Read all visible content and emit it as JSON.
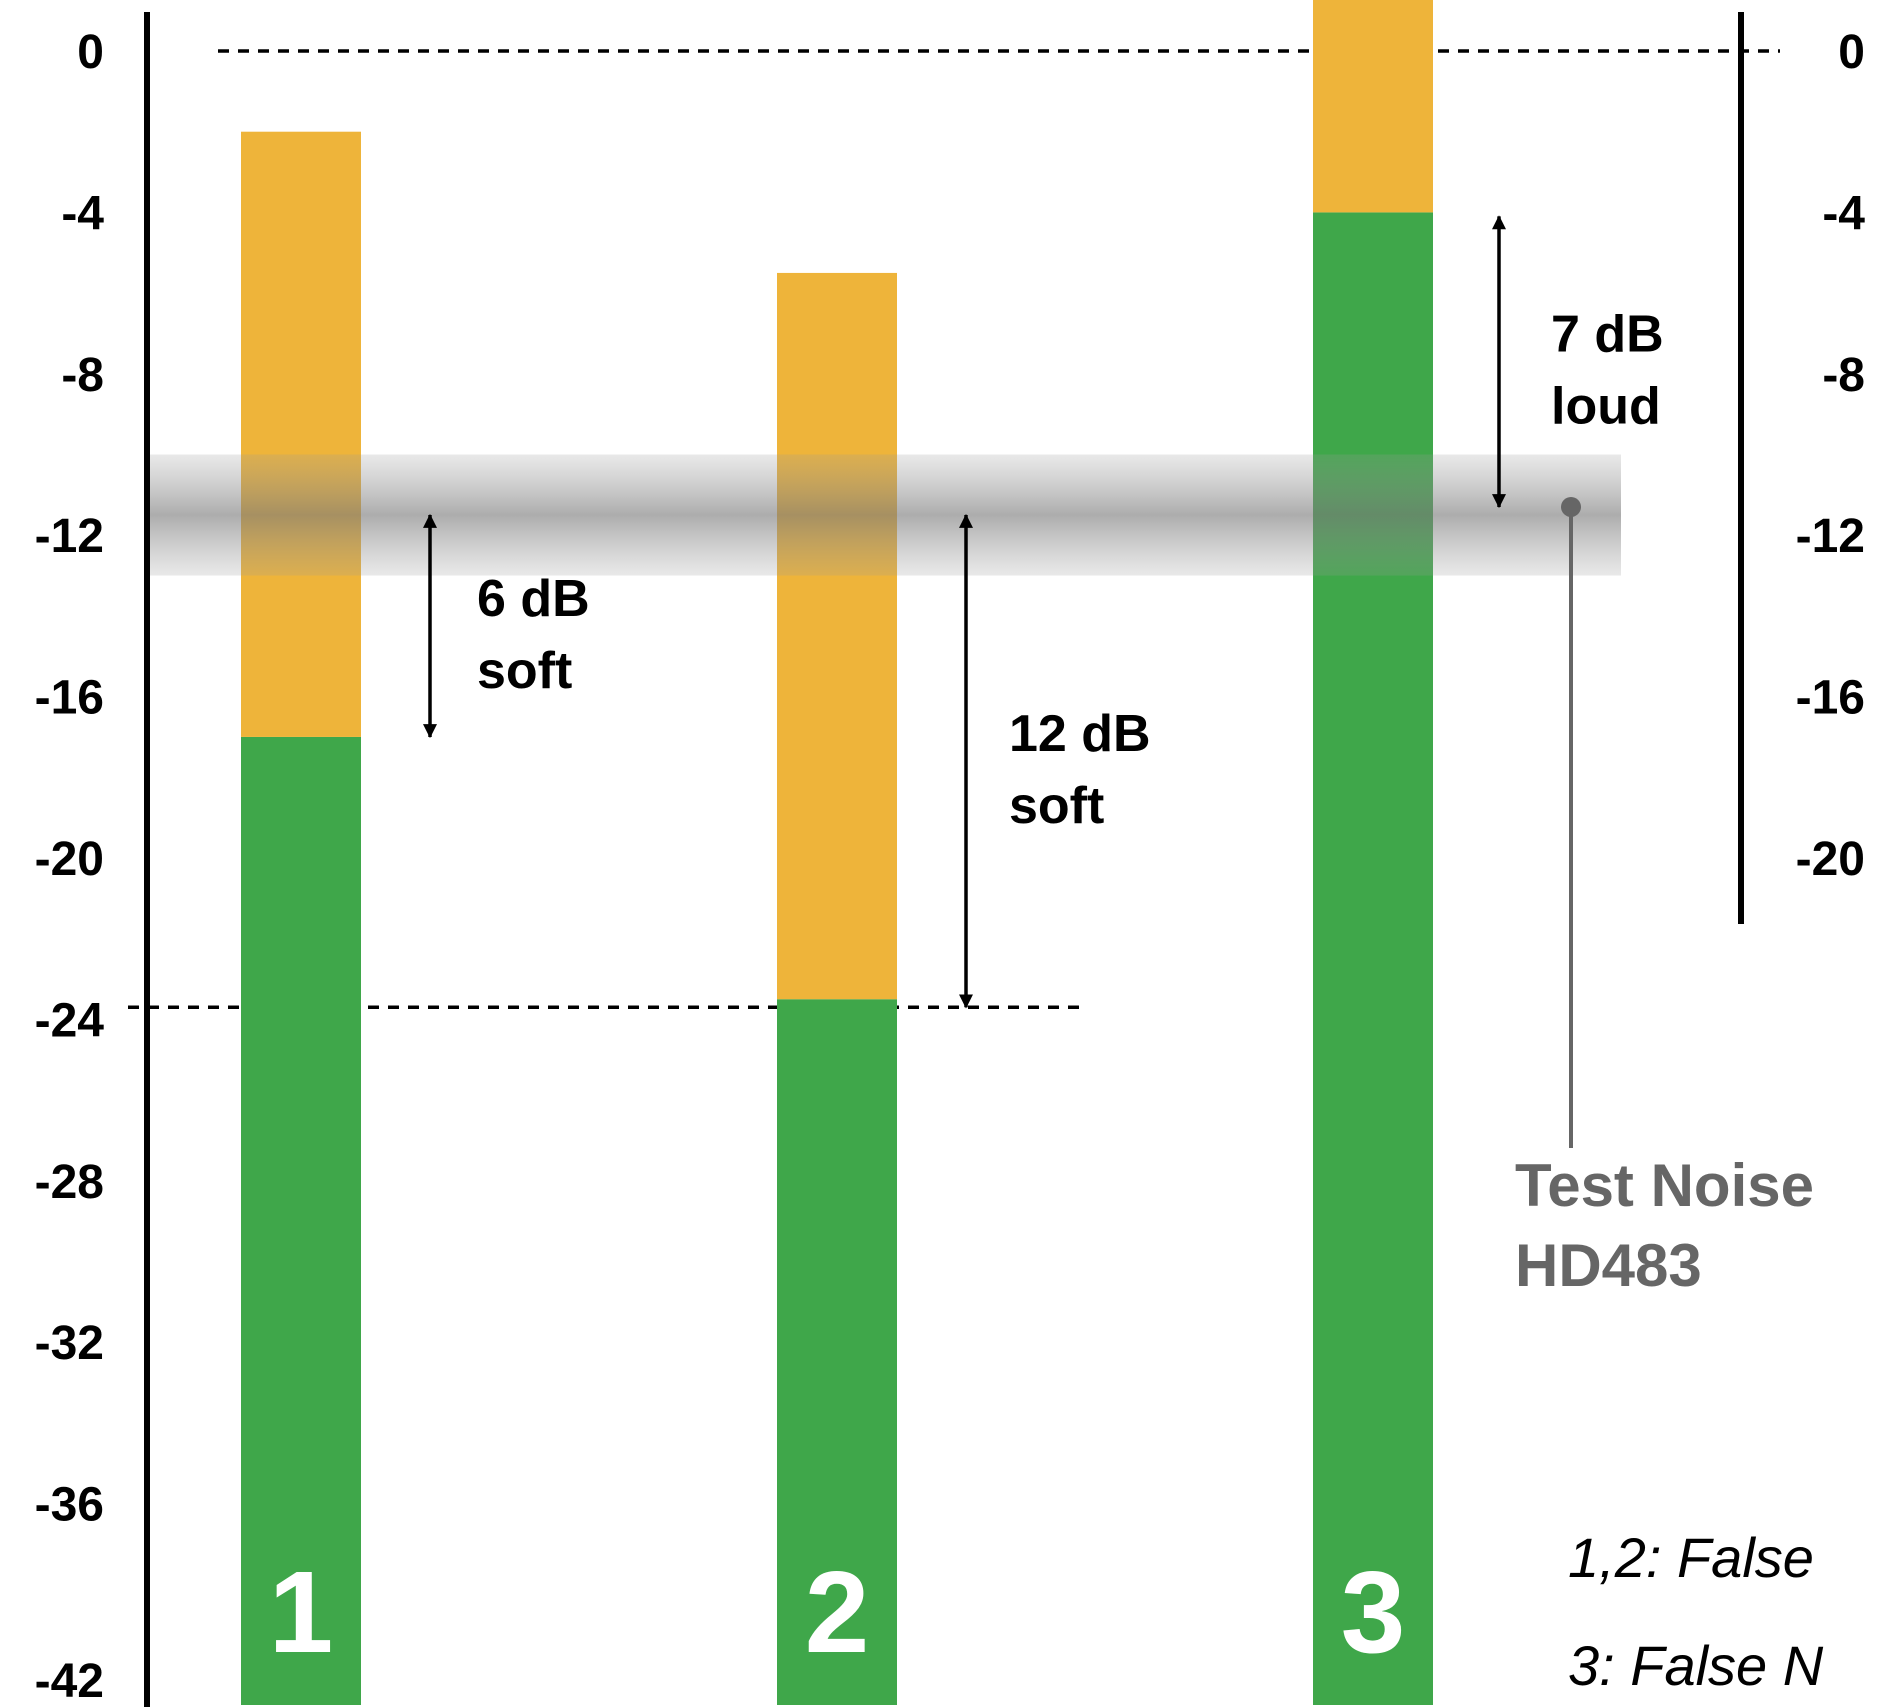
{
  "chart_data": {
    "type": "bar",
    "categories": [
      "1",
      "2",
      "3"
    ],
    "series": [
      {
        "values": [
          -17,
          -23.5,
          -4
        ],
        "color": "#3fa74a"
      },
      {
        "values": [
          15,
          18,
          7
        ],
        "color": "#eeb43a"
      }
    ],
    "ylim": [
      -42,
      0
    ],
    "left_ticks": [
      "0",
      "-4",
      "-8",
      "-12",
      "-16",
      "-20",
      "-24",
      "-28",
      "-32",
      "-36",
      "-42"
    ],
    "left_tick_values": [
      0,
      -4,
      -8,
      -12,
      -16,
      -20,
      -24,
      -28,
      -32,
      -36,
      -42
    ],
    "right_ticks": [
      "0",
      "-4",
      "-8",
      "-12",
      "-16",
      "-20"
    ],
    "right_tick_values": [
      0,
      -4,
      -8,
      -12,
      -16,
      -20
    ],
    "reference_lines": [
      0,
      -23.7
    ],
    "test_noise": {
      "level": -11.3,
      "band": [
        -10,
        -13
      ],
      "label_line1": "Test Noise",
      "label_line2": "HD483"
    },
    "annotations": [
      {
        "line1": "6 dB",
        "line2": "soft",
        "from": -11.5,
        "to": -17
      },
      {
        "line1": "12 dB",
        "line2": "soft",
        "from": -11.5,
        "to": -23.7
      },
      {
        "line1": "7 dB",
        "line2": "loud",
        "from": -4.1,
        "to": -11.3
      }
    ],
    "notes": [
      "1,2: False",
      "3: False N"
    ],
    "colors": {
      "green": "#3fa74a",
      "orange": "#eeb43a",
      "noise": "#666666"
    }
  }
}
